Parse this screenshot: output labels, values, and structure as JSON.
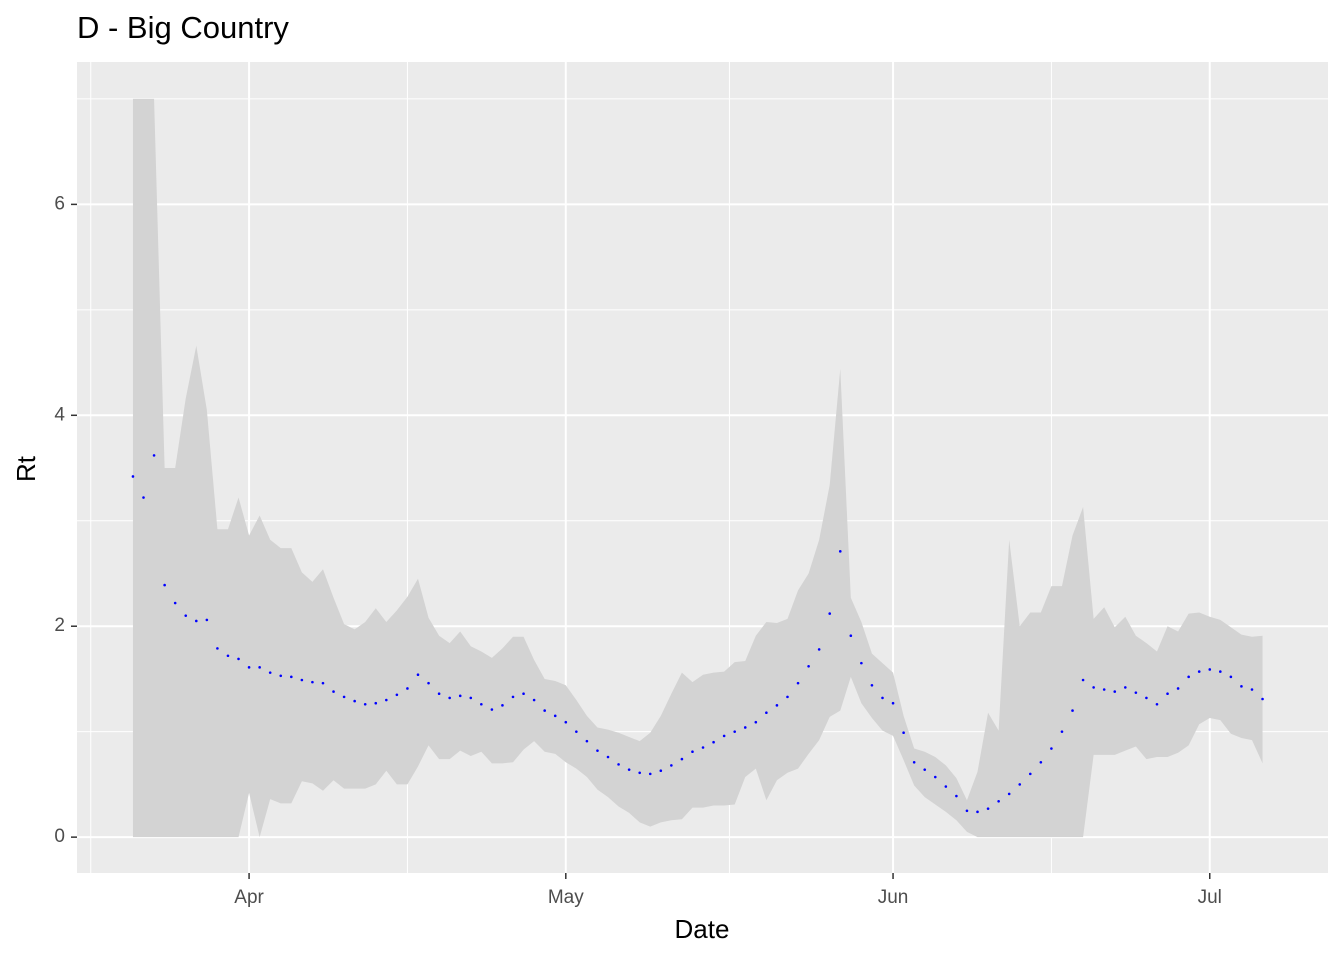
{
  "chart_data": {
    "type": "scatter",
    "title": "D - Big Country",
    "xlabel": "Date",
    "ylabel": "Rt",
    "x": [
      81,
      82,
      83,
      84,
      85,
      86,
      87,
      88,
      89,
      90,
      91,
      92,
      93,
      94,
      95,
      96,
      97,
      98,
      99,
      100,
      101,
      102,
      103,
      104,
      105,
      106,
      107,
      108,
      109,
      110,
      111,
      112,
      113,
      114,
      115,
      116,
      117,
      118,
      119,
      120,
      121,
      122,
      123,
      124,
      125,
      126,
      127,
      128,
      129,
      130,
      131,
      132,
      133,
      134,
      135,
      136,
      137,
      138,
      139,
      140,
      141,
      142,
      143,
      144,
      145,
      146,
      147,
      148,
      149,
      150,
      151,
      152,
      153,
      154,
      155,
      156,
      157,
      158,
      159,
      160,
      161,
      162,
      163,
      164,
      165,
      166,
      167,
      168,
      169,
      170,
      171,
      172,
      173,
      174,
      175,
      176,
      177,
      178,
      179,
      180,
      181,
      182,
      183,
      184,
      185,
      186,
      187,
      188
    ],
    "values": [
      3.42,
      3.22,
      3.62,
      2.39,
      2.22,
      2.1,
      2.05,
      2.06,
      1.79,
      1.72,
      1.69,
      1.61,
      1.61,
      1.56,
      1.53,
      1.52,
      1.49,
      1.47,
      1.46,
      1.38,
      1.33,
      1.29,
      1.26,
      1.27,
      1.3,
      1.35,
      1.41,
      1.54,
      1.46,
      1.36,
      1.32,
      1.34,
      1.32,
      1.26,
      1.21,
      1.25,
      1.33,
      1.36,
      1.3,
      1.2,
      1.15,
      1.09,
      1.0,
      0.91,
      0.82,
      0.76,
      0.69,
      0.64,
      0.61,
      0.6,
      0.63,
      0.68,
      0.74,
      0.81,
      0.85,
      0.9,
      0.96,
      1.0,
      1.04,
      1.09,
      1.18,
      1.25,
      1.33,
      1.46,
      1.62,
      1.78,
      2.12,
      2.71,
      1.91,
      1.65,
      1.44,
      1.32,
      1.27,
      0.99,
      0.71,
      0.64,
      0.57,
      0.48,
      0.39,
      0.25,
      0.24,
      0.27,
      0.34,
      0.41,
      0.5,
      0.6,
      0.71,
      0.84,
      1.0,
      1.2,
      1.49,
      1.42,
      1.4,
      1.38,
      1.42,
      1.37,
      1.32,
      1.26,
      1.36,
      1.41,
      1.52,
      1.57,
      1.59,
      1.57,
      1.52,
      1.43,
      1.4,
      1.31
    ],
    "lower": [
      0,
      0,
      0,
      0,
      0,
      0,
      0,
      0,
      0,
      0,
      0,
      0.42,
      0,
      0.36,
      0.32,
      0.32,
      0.53,
      0.51,
      0.44,
      0.54,
      0.46,
      0.46,
      0.46,
      0.5,
      0.63,
      0.5,
      0.5,
      0.67,
      0.87,
      0.74,
      0.74,
      0.82,
      0.77,
      0.81,
      0.7,
      0.7,
      0.71,
      0.83,
      0.91,
      0.81,
      0.79,
      0.71,
      0.65,
      0.57,
      0.45,
      0.38,
      0.29,
      0.23,
      0.14,
      0.1,
      0.14,
      0.16,
      0.17,
      0.28,
      0.28,
      0.3,
      0.3,
      0.31,
      0.57,
      0.65,
      0.35,
      0.54,
      0.61,
      0.65,
      0.79,
      0.92,
      1.14,
      1.2,
      1.52,
      1.27,
      1.13,
      1.01,
      0.96,
      0.73,
      0.49,
      0.38,
      0.31,
      0.24,
      0.16,
      0.05,
      0,
      0,
      0,
      0,
      0,
      0,
      0,
      0,
      0,
      0,
      0,
      0.78,
      0.78,
      0.78,
      0.82,
      0.86,
      0.74,
      0.76,
      0.76,
      0.8,
      0.87,
      1.07,
      1.13,
      1.11,
      0.98,
      0.94,
      0.92,
      0.7
    ],
    "upper": [
      7.0,
      7.0,
      7.0,
      3.5,
      3.5,
      4.16,
      4.66,
      4.05,
      2.92,
      2.92,
      3.22,
      2.86,
      3.05,
      2.82,
      2.74,
      2.74,
      2.51,
      2.42,
      2.54,
      2.27,
      2.02,
      1.97,
      2.04,
      2.17,
      2.04,
      2.15,
      2.28,
      2.45,
      2.08,
      1.91,
      1.84,
      1.95,
      1.81,
      1.76,
      1.7,
      1.79,
      1.9,
      1.9,
      1.68,
      1.5,
      1.48,
      1.44,
      1.3,
      1.15,
      1.04,
      1.02,
      0.99,
      0.95,
      0.91,
      0.99,
      1.15,
      1.36,
      1.56,
      1.47,
      1.54,
      1.56,
      1.57,
      1.66,
      1.67,
      1.91,
      2.04,
      2.03,
      2.07,
      2.34,
      2.5,
      2.82,
      3.34,
      4.44,
      2.27,
      2.04,
      1.74,
      1.65,
      1.56,
      1.15,
      0.84,
      0.81,
      0.76,
      0.68,
      0.56,
      0.35,
      0.62,
      1.18,
      1.01,
      2.82,
      2.0,
      2.13,
      2.13,
      2.38,
      2.38,
      2.86,
      3.13,
      2.07,
      2.18,
      1.99,
      2.09,
      1.91,
      1.84,
      1.76,
      2.0,
      1.95,
      2.12,
      2.13,
      2.09,
      2.06,
      1.99,
      1.92,
      1.9,
      1.91
    ],
    "color": "#0000ff",
    "ribbon_color": "#d3d3d3",
    "xlim": [
      75.7,
      194.2
    ],
    "ylim": [
      -0.34,
      7.35
    ],
    "xticks": [
      {
        "value": 92,
        "label": "Apr"
      },
      {
        "value": 122,
        "label": "May"
      },
      {
        "value": 153,
        "label": "Jun"
      },
      {
        "value": 183,
        "label": "Jul"
      }
    ],
    "yticks": [
      0,
      2,
      4,
      6
    ],
    "xminorticks": [
      77,
      107,
      137.5,
      168
    ],
    "yminorticks": [
      1,
      3,
      5,
      7
    ],
    "grid": true
  }
}
